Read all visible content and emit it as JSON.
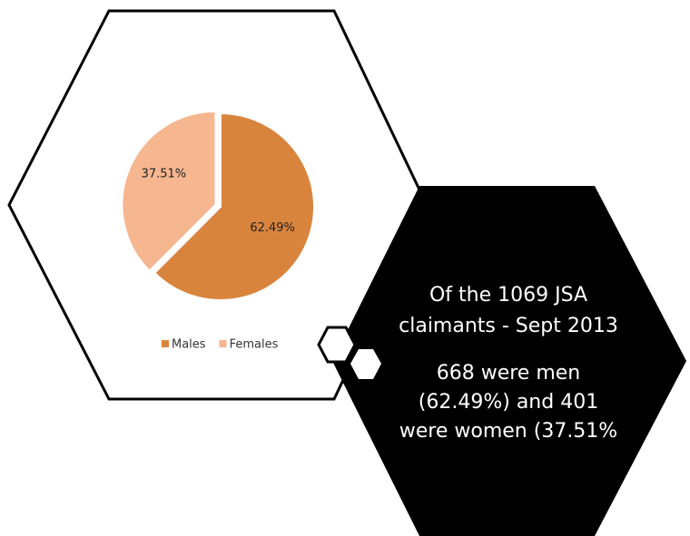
{
  "chart_data": {
    "type": "pie",
    "categories": [
      "Males",
      "Females"
    ],
    "values": [
      62.49,
      37.51
    ],
    "value_labels": [
      "62.49%",
      "37.51%"
    ],
    "colors": [
      "#d9843d",
      "#f6b690"
    ],
    "legend": "bottom"
  },
  "callout": {
    "heading_lines": [
      "Of the 1069 JSA",
      "claimants - Sept 2013"
    ],
    "body_lines": [
      "668 were men",
      "(62.49%) and 401",
      "were women (37.51%"
    ]
  }
}
